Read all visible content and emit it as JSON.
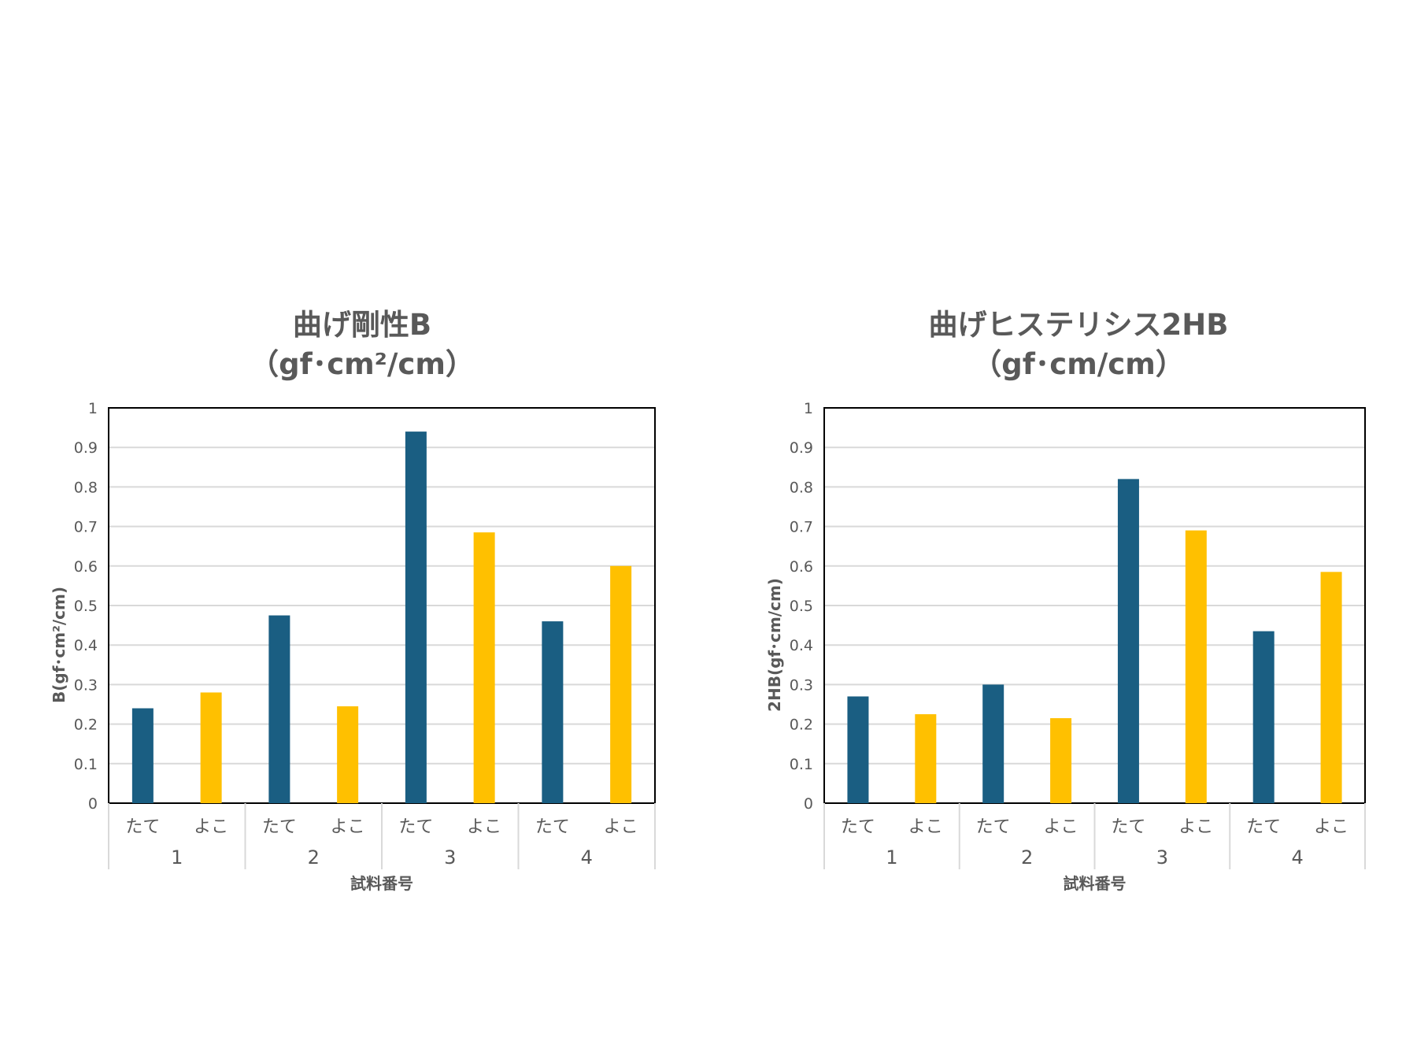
{
  "chart_data": [
    {
      "type": "bar",
      "title_line1": "曲げ剛性B",
      "title_line2": "（gf･cm²/cm）",
      "ylabel": "B(gf･cm²/cm)",
      "xlabel": "試料番号",
      "ylim": [
        0,
        1
      ],
      "yticks": [
        "0",
        "0.1",
        "0.2",
        "0.3",
        "0.4",
        "0.5",
        "0.6",
        "0.7",
        "0.8",
        "0.9",
        "1"
      ],
      "groups": [
        "1",
        "2",
        "3",
        "4"
      ],
      "subcategories": [
        "たて",
        "よこ"
      ],
      "series": [
        {
          "values": [
            0.24,
            0.475,
            0.94,
            0.46
          ],
          "color": "#1a5e82"
        },
        {
          "values": [
            0.28,
            0.245,
            0.685,
            0.6
          ],
          "color": "#ffc000"
        }
      ],
      "grid": true
    },
    {
      "type": "bar",
      "title_line1": "曲げヒステリシス2HB",
      "title_line2": "（gf･cm/cm）",
      "ylabel": "2HB(gf･cm/cm)",
      "xlabel": "試料番号",
      "ylim": [
        0,
        1
      ],
      "yticks": [
        "0",
        "0.1",
        "0.2",
        "0.3",
        "0.4",
        "0.5",
        "0.6",
        "0.7",
        "0.8",
        "0.9",
        "1"
      ],
      "groups": [
        "1",
        "2",
        "3",
        "4"
      ],
      "subcategories": [
        "たて",
        "よこ"
      ],
      "series": [
        {
          "values": [
            0.27,
            0.3,
            0.82,
            0.435
          ],
          "color": "#1a5e82"
        },
        {
          "values": [
            0.225,
            0.215,
            0.69,
            0.585
          ],
          "color": "#ffc000"
        }
      ],
      "grid": true
    }
  ]
}
